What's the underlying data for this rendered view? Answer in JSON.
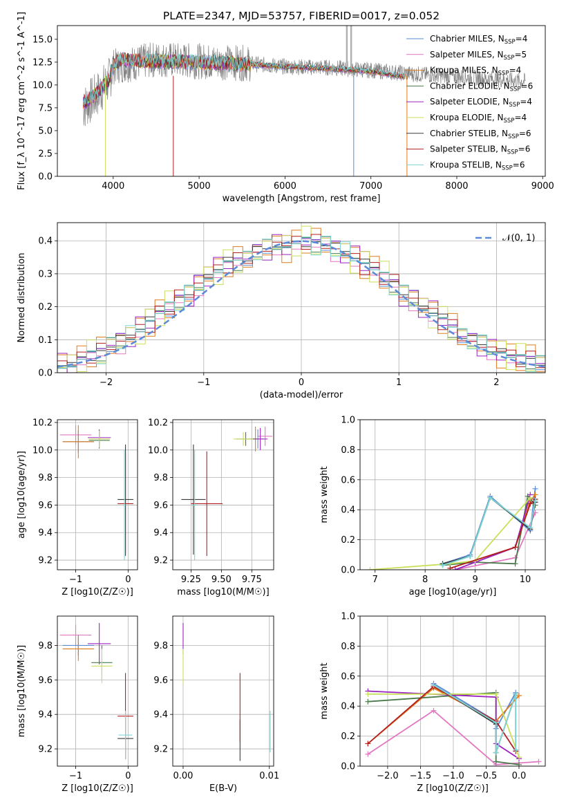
{
  "figure": {
    "title": "PLATE=2347, MJD=53757, FIBERID=0017, z=0.052"
  },
  "colors": {
    "Chabrier MILES": "#5b8ad6",
    "Salpeter MILES": "#e377c2",
    "Kroupa MILES": "#e07b1b",
    "Chabrier ELODIE": "#4a7a4a",
    "Salpeter ELODIE": "#9b22c0",
    "Kroupa ELODIE": "#c9e05a",
    "Chabrier STELIB": "#3a3a3a",
    "Salpeter STELIB": "#b21f1f",
    "Kroupa STELIB": "#7dd6d6",
    "data": "#808080",
    "normal": "#5b8ad6"
  },
  "chart_data": [
    {
      "id": "spectrum",
      "type": "line",
      "title": "PLATE=2347, MJD=53757, FIBERID=0017, z=0.052",
      "xlabel": "wavelength [Angstrom, rest frame]",
      "ylabel": "Flux [f_λ 10^-17 erg cm^-2 s^-1 A^-1]",
      "xlim": [
        3350,
        9030
      ],
      "ylim": [
        0,
        16.5
      ],
      "xticks": [
        4000,
        5000,
        6000,
        7000,
        8000,
        9000
      ],
      "yticks": [
        0.0,
        2.5,
        5.0,
        7.5,
        10.0,
        12.5,
        15.0
      ],
      "ytick_labels": [
        "0.0",
        "2.5",
        "5.0",
        "7.5",
        "10.0",
        "12.5",
        "15.0"
      ],
      "legend": "right",
      "legend_entries": [
        {
          "name": "Chabrier MILES, N_SSP=4",
          "main": "Chabrier MILES, N",
          "sub": "SSP",
          "tail": "=4"
        },
        {
          "name": "Salpeter MILES, N_SSP=5",
          "main": "Salpeter MILES, N",
          "sub": "SSP",
          "tail": "=5"
        },
        {
          "name": "Kroupa MILES, N_SSP=4",
          "main": "Kroupa MILES, N",
          "sub": "SSP",
          "tail": "=4"
        },
        {
          "name": "Chabrier ELODIE, N_SSP=6",
          "main": "Chabrier ELODIE, N",
          "sub": "SSP",
          "tail": "=6"
        },
        {
          "name": "Salpeter ELODIE, N_SSP=4",
          "main": "Salpeter ELODIE, N",
          "sub": "SSP",
          "tail": "=4"
        },
        {
          "name": "Kroupa ELODIE, N_SSP=4",
          "main": "Kroupa ELODIE, N",
          "sub": "SSP",
          "tail": "=4"
        },
        {
          "name": "Chabrier STELIB, N_SSP=6",
          "main": "Chabrier STELIB, N",
          "sub": "SSP",
          "tail": "=6"
        },
        {
          "name": "Salpeter STELIB, N_SSP=6",
          "main": "Salpeter STELIB, N",
          "sub": "SSP",
          "tail": "=6"
        },
        {
          "name": "Kroupa STELIB, N_SSP=6",
          "main": "Kroupa STELIB, N",
          "sub": "SSP",
          "tail": "=6"
        }
      ],
      "model_continuum": {
        "x": [
          3650,
          3800,
          3950,
          4000,
          4100,
          4300,
          4500,
          5000,
          5500,
          6000,
          6500,
          7000,
          7400
        ],
        "y": [
          8.0,
          9.0,
          10.5,
          12.2,
          12.8,
          12.6,
          12.6,
          12.5,
          12.3,
          12.0,
          11.8,
          11.5,
          10.9
        ]
      },
      "data_continuum": {
        "x": [
          3650,
          3800,
          3950,
          4000,
          4500,
          5000,
          5500,
          6000,
          6500,
          7000,
          7500,
          8000,
          8500,
          8800
        ],
        "y": [
          7.5,
          8.8,
          10.5,
          12.0,
          12.8,
          12.6,
          12.4,
          12.0,
          11.9,
          11.6,
          11.2,
          10.9,
          10.6,
          10.4
        ]
      },
      "spikes": [
        {
          "x": 6720,
          "y": 16.5
        },
        {
          "x": 6770,
          "y": 16.5
        }
      ],
      "dips": [
        {
          "x": 3910,
          "y": 0.0
        },
        {
          "x": 4700,
          "y": 0.0
        },
        {
          "x": 6800,
          "y": 0.0
        },
        {
          "x": 7420,
          "y": 0.0
        }
      ]
    },
    {
      "id": "residuals",
      "type": "bar",
      "xlabel": "(data-model)/error",
      "ylabel": "Normed distribution",
      "xlim": [
        -2.5,
        2.5
      ],
      "ylim": [
        0,
        0.455
      ],
      "xticks": [
        -2,
        -1,
        0,
        1,
        2
      ],
      "xtick_labels": [
        "−2",
        "−1",
        "0",
        "1",
        "2"
      ],
      "yticks": [
        0.0,
        0.1,
        0.2,
        0.3,
        0.4
      ],
      "ytick_labels": [
        "0.0",
        "0.1",
        "0.2",
        "0.3",
        "0.4"
      ],
      "legend_label": "𝒩(0, 1)",
      "bin_width": 0.1,
      "bin_start": -2.5,
      "envelope": [
        0.028,
        0.02,
        0.044,
        0.055,
        0.06,
        0.085,
        0.095,
        0.11,
        0.135,
        0.155,
        0.18,
        0.2,
        0.218,
        0.24,
        0.268,
        0.29,
        0.312,
        0.332,
        0.338,
        0.35,
        0.368,
        0.376,
        0.388,
        0.382,
        0.395,
        0.4,
        0.39,
        0.392,
        0.375,
        0.364,
        0.35,
        0.33,
        0.312,
        0.29,
        0.265,
        0.24,
        0.222,
        0.195,
        0.18,
        0.16,
        0.135,
        0.115,
        0.098,
        0.085,
        0.07,
        0.062,
        0.05,
        0.044,
        0.036,
        0.03
      ],
      "series_offsets": [
        0.01,
        -0.02,
        0.03,
        -0.01,
        0.02,
        -0.03,
        0.0,
        0.015,
        -0.015
      ]
    },
    {
      "id": "age-vs-z",
      "type": "scatter",
      "xlabel": "Z [log10(Z/Z☉)]",
      "ylabel": "age  [log10(age/yr)]",
      "xlim": [
        -1.35,
        0.18
      ],
      "ylim": [
        9.13,
        10.22
      ],
      "xticks": [
        -1,
        0
      ],
      "xtick_labels": [
        "−1",
        "0"
      ],
      "yticks": [
        9.2,
        9.4,
        9.6,
        9.8,
        10.0,
        10.2
      ],
      "ytick_labels": [
        "9.2",
        "9.4",
        "9.6",
        "9.8",
        "10.0",
        "10.2"
      ],
      "points": [
        {
          "s": "Salpeter MILES",
          "x": -1.0,
          "y": 10.11,
          "xe": 0.3,
          "ye": 0.07
        },
        {
          "s": "Chabrier MILES",
          "x": -0.95,
          "y": 10.06,
          "xe": 0.3,
          "ye": 0.08
        },
        {
          "s": "Kroupa MILES",
          "x": -0.95,
          "y": 10.06,
          "xe": 0.3,
          "ye": 0.12
        },
        {
          "s": "Salpeter ELODIE",
          "x": -0.55,
          "y": 10.09,
          "xe": 0.22,
          "ye": 0.06
        },
        {
          "s": "Chabrier ELODIE",
          "x": -0.55,
          "y": 10.07,
          "xe": 0.2,
          "ye": 0.06
        },
        {
          "s": "Kroupa ELODIE",
          "x": -0.55,
          "y": 10.08,
          "xe": 0.2,
          "ye": 0.06
        },
        {
          "s": "Chabrier STELIB",
          "x": -0.05,
          "y": 9.64,
          "xe": 0.15,
          "ye": 0.4
        },
        {
          "s": "Salpeter STELIB",
          "x": -0.05,
          "y": 9.61,
          "xe": 0.15,
          "ye": 0.38
        },
        {
          "s": "Kroupa STELIB",
          "x": -0.07,
          "y": 9.6,
          "xe": 0.02,
          "ye": 0.4
        }
      ]
    },
    {
      "id": "age-vs-mass",
      "type": "scatter",
      "xlabel": "mass [log10(M/M☉)]",
      "ylabel": "",
      "xlim": [
        9.1,
        9.93
      ],
      "ylim": [
        9.13,
        10.22
      ],
      "xticks": [
        9.25,
        9.5,
        9.75
      ],
      "xtick_labels": [
        "9.25",
        "9.50",
        "9.75"
      ],
      "yticks": [
        9.2,
        9.4,
        9.6,
        9.8,
        10.0,
        10.2
      ],
      "ytick_labels": [
        "9.2",
        "9.4",
        "9.6",
        "9.8",
        "10.0",
        "10.2"
      ],
      "points": [
        {
          "s": "Salpeter MILES",
          "x": 9.86,
          "y": 10.1,
          "xe": 0.06,
          "ye": 0.07
        },
        {
          "s": "Chabrier MILES",
          "x": 9.8,
          "y": 10.08,
          "xe": 0.06,
          "ye": 0.07
        },
        {
          "s": "Kroupa MILES",
          "x": 9.78,
          "y": 10.08,
          "xe": 0.06,
          "ye": 0.09
        },
        {
          "s": "Salpeter ELODIE",
          "x": 9.82,
          "y": 10.08,
          "xe": 0.06,
          "ye": 0.08
        },
        {
          "s": "Chabrier ELODIE",
          "x": 9.7,
          "y": 10.08,
          "xe": 0.08,
          "ye": 0.05
        },
        {
          "s": "Kroupa ELODIE",
          "x": 9.68,
          "y": 10.08,
          "xe": 0.08,
          "ye": 0.05
        },
        {
          "s": "Chabrier STELIB",
          "x": 9.27,
          "y": 9.64,
          "xe": 0.1,
          "ye": 0.4
        },
        {
          "s": "Salpeter STELIB",
          "x": 9.38,
          "y": 9.61,
          "xe": 0.13,
          "ye": 0.38
        },
        {
          "s": "Kroupa STELIB",
          "x": 9.28,
          "y": 9.6,
          "xe": 0.02,
          "ye": 0.4
        }
      ]
    },
    {
      "id": "mass-weight-vs-age",
      "type": "line",
      "xlabel": "age  [log10(age/yr)]",
      "ylabel": "mass weight",
      "xlim": [
        6.7,
        10.4
      ],
      "ylim": [
        0,
        1.0
      ],
      "xticks": [
        7,
        8,
        9,
        10
      ],
      "xtick_labels": [
        "7",
        "8",
        "9",
        "10"
      ],
      "yticks": [
        0.0,
        0.2,
        0.4,
        0.6,
        0.8,
        1.0
      ],
      "ytick_labels": [
        "0.0",
        "0.2",
        "0.4",
        "0.6",
        "0.8",
        "1.0"
      ],
      "series": [
        {
          "s": "Chabrier MILES",
          "x": [
            8.35,
            8.9,
            9.3,
            10.1,
            10.2
          ],
          "y": [
            0.04,
            0.1,
            0.49,
            0.26,
            0.54
          ]
        },
        {
          "s": "Salpeter MILES",
          "x": [
            8.6,
            9.8,
            10.2
          ],
          "y": [
            0.0,
            0.08,
            0.38
          ]
        },
        {
          "s": "Kroupa MILES",
          "x": [
            8.5,
            9.8,
            10.1,
            10.2
          ],
          "y": [
            0.01,
            0.15,
            0.46,
            0.5
          ]
        },
        {
          "s": "Chabrier ELODIE",
          "x": [
            8.35,
            9.0,
            9.8,
            10.05,
            10.2
          ],
          "y": [
            0.03,
            0.05,
            0.04,
            0.49,
            0.43
          ]
        },
        {
          "s": "Salpeter ELODIE",
          "x": [
            8.6,
            9.0,
            9.8,
            10.1
          ],
          "y": [
            0.0,
            0.05,
            0.15,
            0.5
          ]
        },
        {
          "s": "Kroupa ELODIE",
          "x": [
            6.9,
            8.5,
            9.0,
            10.1
          ],
          "y": [
            0.0,
            0.04,
            0.06,
            0.48
          ]
        },
        {
          "s": "Chabrier STELIB",
          "x": [
            8.35,
            8.9,
            9.3,
            10.1,
            10.2
          ],
          "y": [
            0.04,
            0.09,
            0.48,
            0.27,
            0.45
          ]
        },
        {
          "s": "Salpeter STELIB",
          "x": [
            8.5,
            9.8,
            10.1,
            10.2
          ],
          "y": [
            0.01,
            0.15,
            0.44,
            0.47
          ]
        },
        {
          "s": "Kroupa STELIB",
          "x": [
            8.35,
            8.9,
            9.3,
            10.1,
            10.2
          ],
          "y": [
            0.03,
            0.09,
            0.48,
            0.28,
            0.46
          ]
        }
      ]
    },
    {
      "id": "mass-vs-z",
      "type": "scatter",
      "xlabel": "Z [log10(Z/Z☉)]",
      "ylabel": "mass [log10(M/M☉)]",
      "xlim": [
        -1.35,
        0.18
      ],
      "ylim": [
        9.1,
        9.97
      ],
      "xticks": [
        -1,
        0
      ],
      "xtick_labels": [
        "−1",
        "0"
      ],
      "yticks": [
        9.2,
        9.4,
        9.6,
        9.8
      ],
      "ytick_labels": [
        "9.2",
        "9.4",
        "9.6",
        "9.8"
      ],
      "points": [
        {
          "s": "Salpeter MILES",
          "x": -1.0,
          "y": 9.86,
          "xe": 0.3,
          "ye": 0.06
        },
        {
          "s": "Chabrier MILES",
          "x": -0.95,
          "y": 9.8,
          "xe": 0.3,
          "ye": 0.06
        },
        {
          "s": "Kroupa MILES",
          "x": -0.95,
          "y": 9.78,
          "xe": 0.3,
          "ye": 0.07
        },
        {
          "s": "Salpeter ELODIE",
          "x": -0.55,
          "y": 9.81,
          "xe": 0.22,
          "ye": 0.12
        },
        {
          "s": "Chabrier ELODIE",
          "x": -0.5,
          "y": 9.7,
          "xe": 0.2,
          "ye": 0.1
        },
        {
          "s": "Kroupa ELODIE",
          "x": -0.5,
          "y": 9.68,
          "xe": 0.2,
          "ye": 0.1
        },
        {
          "s": "Chabrier STELIB",
          "x": -0.05,
          "y": 9.26,
          "xe": 0.15,
          "ye": 0.12
        },
        {
          "s": "Salpeter STELIB",
          "x": -0.05,
          "y": 9.39,
          "xe": 0.15,
          "ye": 0.25
        },
        {
          "s": "Kroupa STELIB",
          "x": -0.05,
          "y": 9.28,
          "xe": 0.13,
          "ye": 0.14
        }
      ]
    },
    {
      "id": "mass-vs-ebv",
      "type": "scatter",
      "xlabel": "E(B-V)",
      "ylabel": "",
      "xlim": [
        -0.0012,
        0.0105
      ],
      "ylim": [
        9.1,
        9.97
      ],
      "xticks": [
        0.0,
        0.01
      ],
      "xtick_labels": [
        "0.00",
        "0.01"
      ],
      "yticks": [
        9.2,
        9.4,
        9.6,
        9.8
      ],
      "ytick_labels": [
        "9.2",
        "9.4",
        "9.6",
        "9.8"
      ],
      "points": [
        {
          "s": "Salpeter ELODIE",
          "x": 0.0,
          "y": 9.84,
          "xe": 0.0,
          "ye": 0.09
        },
        {
          "s": "Kroupa ELODIE",
          "x": 0.0,
          "y": 9.68,
          "xe": 0.0,
          "ye": 0.1
        },
        {
          "s": "Chabrier STELIB",
          "x": 0.0066,
          "y": 9.25,
          "xe": 0.0,
          "ye": 0.12
        },
        {
          "s": "Salpeter STELIB",
          "x": 0.0066,
          "y": 9.44,
          "xe": 0.0,
          "ye": 0.2
        },
        {
          "s": "Kroupa STELIB",
          "x": 0.0101,
          "y": 9.3,
          "xe": 0.0,
          "ye": 0.12
        }
      ]
    },
    {
      "id": "mass-weight-vs-z",
      "type": "line",
      "xlabel": "Z [log10(Z/Z☉)]",
      "ylabel": "mass weight",
      "xlim": [
        -2.42,
        0.4
      ],
      "ylim": [
        0,
        1.0
      ],
      "xticks": [
        -2.0,
        -1.5,
        -1.0,
        -0.5,
        0.0
      ],
      "xtick_labels": [
        "−2.0",
        "−1.5",
        "−1.0",
        "−0.5",
        "0.0"
      ],
      "yticks": [
        0.0,
        0.2,
        0.4,
        0.6,
        0.8,
        1.0
      ],
      "ytick_labels": [
        "0.0",
        "0.2",
        "0.4",
        "0.6",
        "0.8",
        "1.0"
      ],
      "series": [
        {
          "s": "Chabrier MILES",
          "x": [
            -1.3,
            -0.35,
            -0.35,
            -0.05,
            -0.05
          ],
          "y": [
            0.55,
            0.3,
            0.25,
            0.49,
            0.1
          ]
        },
        {
          "s": "Salpeter MILES",
          "x": [
            -2.3,
            -1.3,
            -0.35,
            0.3
          ],
          "y": [
            0.08,
            0.37,
            0.01,
            0.03
          ]
        },
        {
          "s": "Kroupa MILES",
          "x": [
            -2.3,
            -1.3,
            -0.35,
            0.0
          ],
          "y": [
            0.15,
            0.52,
            0.3,
            0.47
          ]
        },
        {
          "s": "Chabrier ELODIE",
          "x": [
            -2.3,
            -0.35,
            -0.35,
            0.0
          ],
          "y": [
            0.43,
            0.49,
            0.03,
            0.01
          ]
        },
        {
          "s": "Salpeter ELODIE",
          "x": [
            -2.3,
            -0.35,
            -0.35,
            0.0
          ],
          "y": [
            0.5,
            0.46,
            0.15,
            0.05
          ]
        },
        {
          "s": "Kroupa ELODIE",
          "x": [
            -2.3,
            -0.35,
            0.0
          ],
          "y": [
            0.48,
            0.48,
            0.06
          ]
        },
        {
          "s": "Chabrier STELIB",
          "x": [
            -1.3,
            -0.35,
            -0.35,
            -0.05
          ],
          "y": [
            0.54,
            0.28,
            0.09,
            0.48
          ]
        },
        {
          "s": "Salpeter STELIB",
          "x": [
            -2.3,
            -1.3,
            -0.35,
            -0.05
          ],
          "y": [
            0.15,
            0.53,
            0.3,
            0.1
          ]
        },
        {
          "s": "Kroupa STELIB",
          "x": [
            -1.3,
            -0.35,
            -0.35,
            -0.05,
            -0.05
          ],
          "y": [
            0.54,
            0.29,
            0.09,
            0.48,
            0.11
          ]
        }
      ]
    }
  ]
}
